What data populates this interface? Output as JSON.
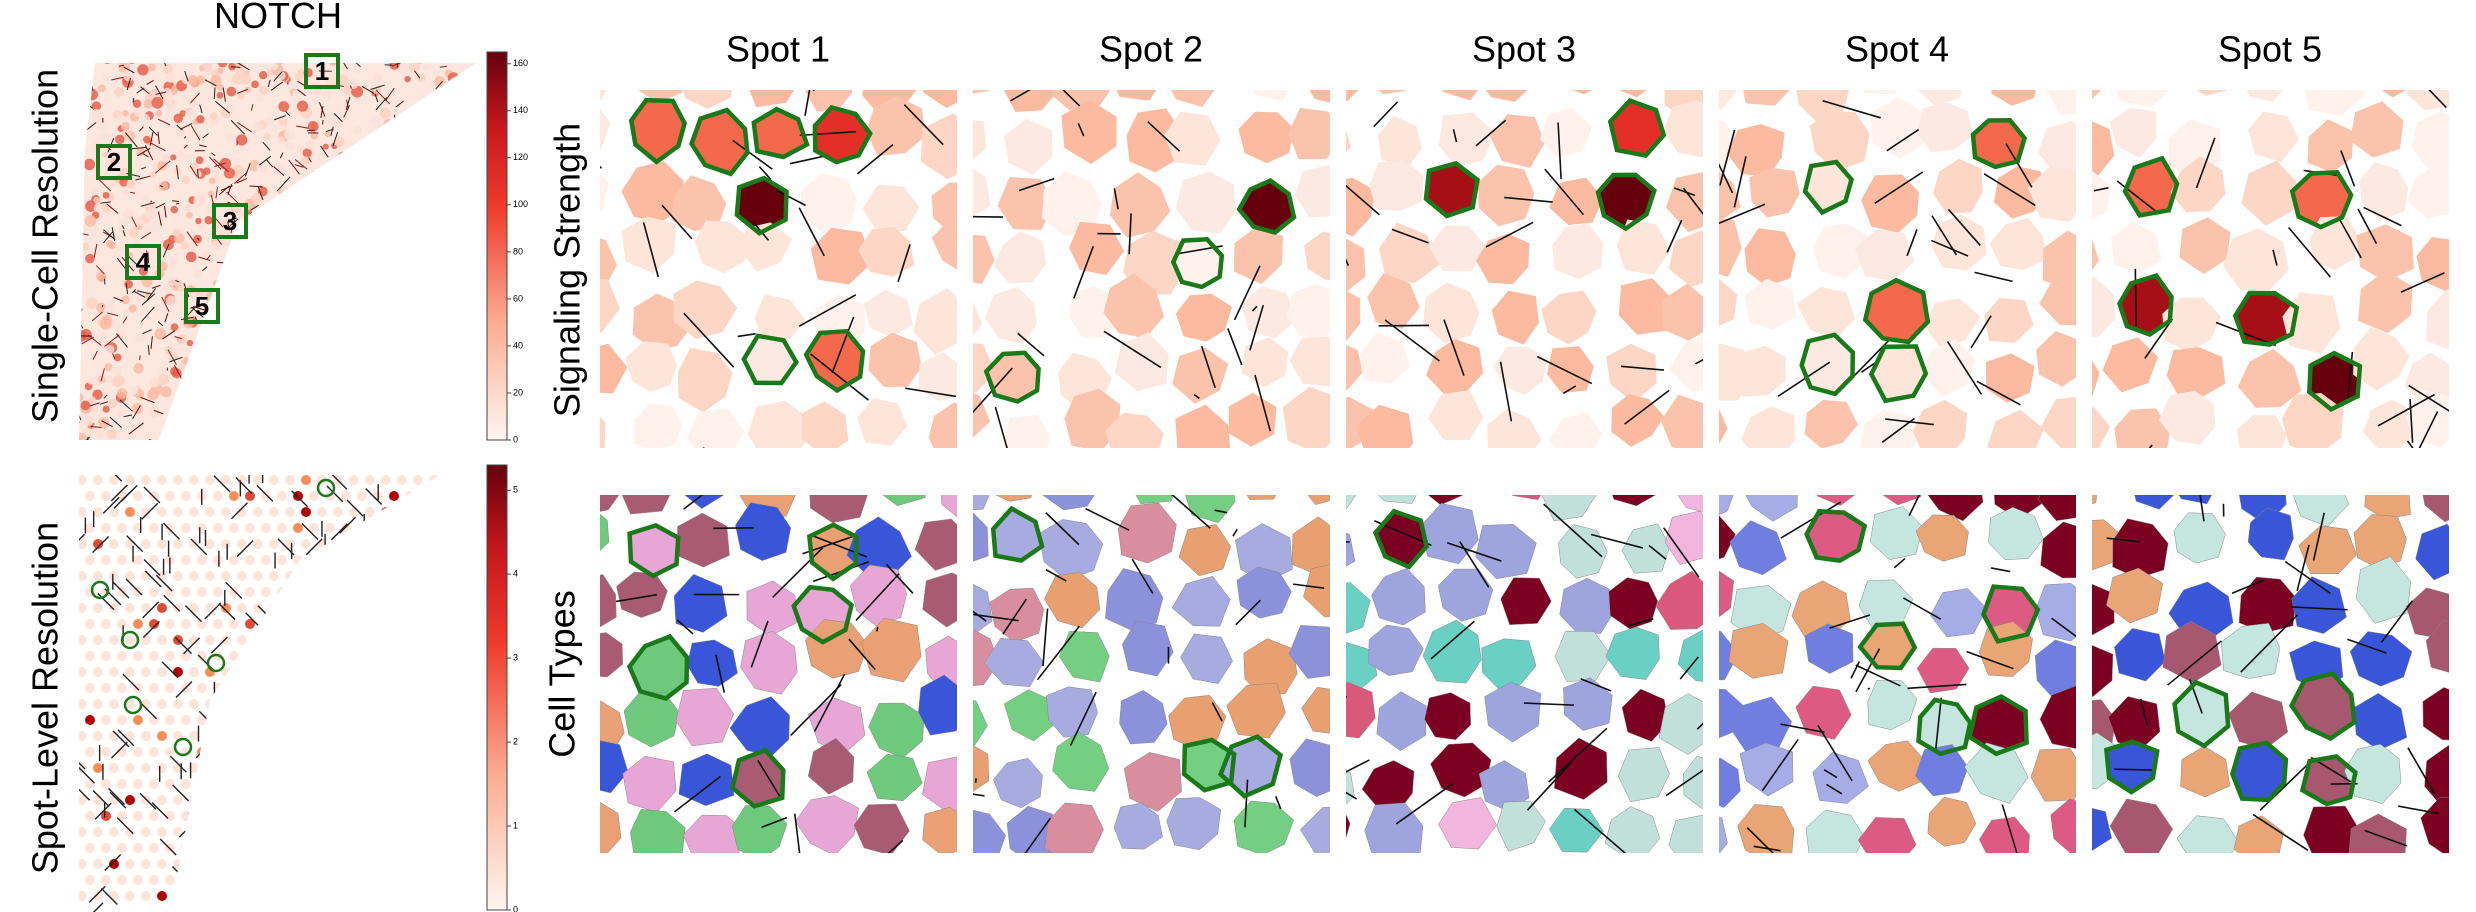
{
  "figure": {
    "title": "NOTCH",
    "row_labels": [
      "Single-Cell Resolution",
      "Spot-Level Resolution"
    ],
    "spot_markers": [
      "1",
      "2",
      "3",
      "4",
      "5"
    ],
    "columns": [
      "Spot 1",
      "Spot 2",
      "Spot 3",
      "Spot 4",
      "Spot 5"
    ],
    "panel_rows": [
      "Signaling Strength",
      "Cell Types"
    ],
    "colorbars": [
      {
        "lim": [
          0,
          165
        ],
        "ticks": [
          0,
          20,
          40,
          60,
          80,
          100,
          120,
          140,
          160
        ]
      },
      {
        "lim": [
          0,
          5.3
        ],
        "ticks": [
          0,
          1,
          2,
          3,
          4,
          5
        ]
      }
    ]
  }
}
